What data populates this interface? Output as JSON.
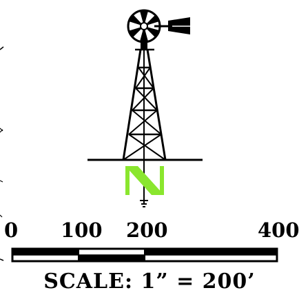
{
  "scale_bar": {
    "ticks": [
      "0",
      "100",
      "200",
      "400"
    ],
    "scale_text": "SCALE:  1”  =  200’"
  },
  "north_arrow": {
    "letter": "N",
    "icon": "windmill-icon",
    "letter_color": "#8ae62e"
  }
}
